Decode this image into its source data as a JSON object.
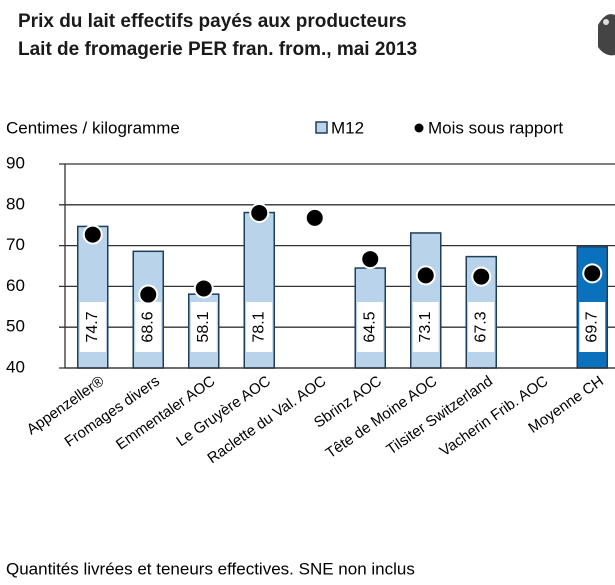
{
  "chart_data": {
    "type": "bar",
    "title": "Prix du lait effectifs payés aux producteurs",
    "subtitle": "Lait de fromagerie PER fran. from., mai 2013",
    "y_label": "Centimes / kilogramme",
    "note": "Quantités livrées et teneurs effectives. SNE non inclus",
    "categories": [
      "Appenzeller®",
      "Fromages divers",
      "Emmentaler AOC",
      "Le Gruyère AOC",
      "Raclette du Val. AOC",
      "Sbrinz AOC",
      "Tête de Moine AOC",
      "Tilsiter Switzerland",
      "Vacherin Frib. AOC",
      "Moyenne CH"
    ],
    "series": [
      {
        "name": "M12",
        "type": "bar",
        "color": "#b9d4ea",
        "colors": [
          "#b9d4ea",
          "#b9d4ea",
          "#b9d4ea",
          "#b9d4ea",
          "#b9d4ea",
          "#b9d4ea",
          "#b9d4ea",
          "#b9d4ea",
          "#b9d4ea",
          "#0a72bd"
        ],
        "values": [
          74.7,
          68.6,
          58.1,
          78.1,
          null,
          64.5,
          73.1,
          67.3,
          null,
          69.7
        ]
      },
      {
        "name": "Mois sous rapport",
        "type": "dot",
        "color": "#000000",
        "values": [
          72.7,
          58.0,
          59.5,
          78.0,
          76.8,
          66.7,
          62.7,
          62.4,
          null,
          63.2
        ]
      }
    ],
    "ylim": [
      40,
      90
    ],
    "yticks": [
      40,
      50,
      60,
      70,
      80,
      90
    ],
    "grid": true
  }
}
